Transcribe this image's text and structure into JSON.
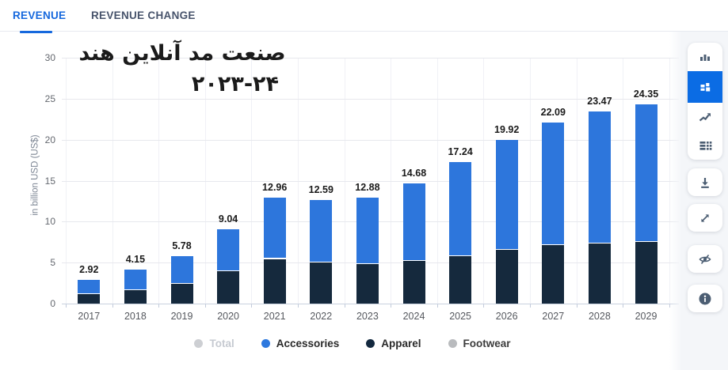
{
  "tabs": [
    {
      "label": "REVENUE",
      "active": true
    },
    {
      "label": "REVENUE CHANGE",
      "active": false
    }
  ],
  "title": {
    "line1": "صنعت مد آنلاین هند",
    "line2": "۲۰۲۳-۲۴"
  },
  "chart_data": {
    "type": "bar",
    "stacked": true,
    "title": "صنعت مد آنلاین هند ۲۰۲۳-۲۴",
    "xlabel": "",
    "ylabel": "in billion USD (US$)",
    "ylim": [
      0,
      30
    ],
    "yticks": [
      0,
      5,
      10,
      15,
      20,
      25,
      30
    ],
    "grid": true,
    "legend_position": "bottom",
    "categories": [
      "2017",
      "2018",
      "2019",
      "2020",
      "2021",
      "2022",
      "2023",
      "2024",
      "2025",
      "2026",
      "2027",
      "2028",
      "2029"
    ],
    "series": [
      {
        "name": "Apparel",
        "color": "#15293d",
        "values": [
          1.15,
          1.6,
          2.4,
          4.0,
          5.45,
          5.0,
          4.8,
          5.2,
          5.8,
          6.6,
          7.1,
          7.3,
          7.5
        ]
      },
      {
        "name": "Accessories",
        "color": "#2d76dc",
        "values": [
          1.77,
          2.55,
          3.38,
          5.04,
          7.51,
          7.59,
          8.08,
          9.48,
          11.44,
          13.32,
          14.99,
          16.17,
          16.85
        ]
      }
    ],
    "totals": [
      2.92,
      4.15,
      5.78,
      9.04,
      12.96,
      12.59,
      12.88,
      14.68,
      17.24,
      19.92,
      22.09,
      23.47,
      24.35
    ],
    "total_labels": [
      "2.92",
      "4.15",
      "5.78",
      "9.04",
      "12.96",
      "12.59",
      "12.88",
      "14.68",
      "17.24",
      "19.92",
      "22.09",
      "23.47",
      "24.35"
    ],
    "legend": [
      {
        "label": "Total",
        "dot": "#cdcfd3",
        "text": "#c6cad1",
        "disabled": true
      },
      {
        "label": "Accessories",
        "dot": "#2d78de",
        "text": "#2a2a2a",
        "disabled": false
      },
      {
        "label": "Apparel",
        "dot": "#13293f",
        "text": "#2a2a2a",
        "disabled": false
      },
      {
        "label": "Footwear",
        "dot": "#b9bbbe",
        "text": "#3c3c3c",
        "disabled": true
      }
    ]
  },
  "sidebar": {
    "icons": [
      {
        "name": "column-chart-icon",
        "active": false
      },
      {
        "name": "stacked-chart-icon",
        "active": true
      },
      {
        "name": "trend-chart-icon",
        "active": false
      },
      {
        "name": "data-table-icon",
        "active": false
      },
      {
        "name": "download-icon",
        "active": false
      },
      {
        "name": "fullscreen-icon",
        "active": false
      },
      {
        "name": "hide-series-icon",
        "active": false
      },
      {
        "name": "info-icon",
        "active": false
      }
    ]
  },
  "colors": {
    "accent_blue": "#0b6ce4",
    "tab_active": "#1668dd",
    "bar_blue": "#2d76dc",
    "bar_navy": "#15293d",
    "sidebar_bg": "#f4f6f9"
  }
}
